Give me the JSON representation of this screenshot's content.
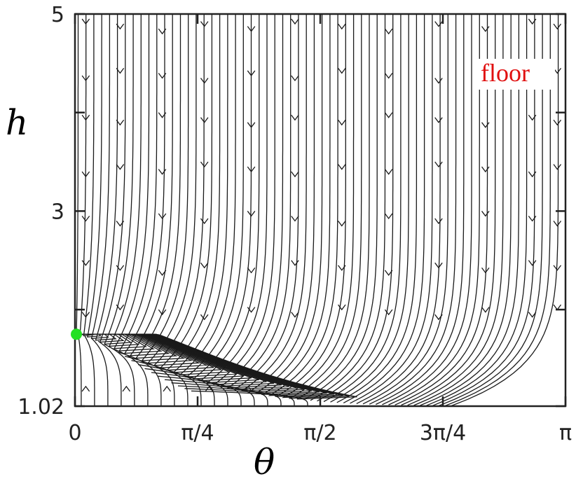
{
  "chart_data": {
    "type": "streamplot",
    "title": "",
    "xlabel": "θ",
    "ylabel": "h",
    "xlim": [
      0,
      3.14159
    ],
    "ylim": [
      1.02,
      5
    ],
    "xticks": [
      {
        "value": 0,
        "label": "0"
      },
      {
        "value": 0.7854,
        "label": "π/4"
      },
      {
        "value": 1.5708,
        "label": "π/2"
      },
      {
        "value": 2.3562,
        "label": "3π/4"
      },
      {
        "value": 3.14159,
        "label": "π"
      }
    ],
    "yticks": [
      {
        "value": 1.02,
        "label": "1.02"
      },
      {
        "value": 3,
        "label": "3"
      },
      {
        "value": 5,
        "label": "5"
      }
    ],
    "fixed_point": {
      "theta": 0,
      "h": 1.75,
      "color": "#22e022"
    },
    "annotation": {
      "text": "floor",
      "color": "#e01010"
    },
    "grid": false,
    "description_colors": {
      "streamlines": "#1a1a1a",
      "frame": "#222222"
    }
  }
}
